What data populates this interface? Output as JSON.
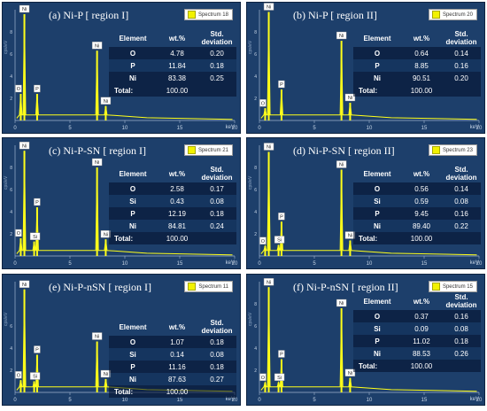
{
  "panels": [
    {
      "title": "(a) Ni-P [ region I]",
      "spectrum": "Spectrum 18",
      "ylabel": "cps/eV",
      "xlabel": "keV",
      "xticks": [
        0,
        5,
        10,
        15,
        20
      ],
      "yticks": [
        2,
        4,
        6,
        8
      ],
      "peaks": [
        {
          "label": "Ni",
          "x": 0.85,
          "h": 9.6
        },
        {
          "label": "O",
          "x": 0.52,
          "h": 2.4
        },
        {
          "label": "P",
          "x": 2.01,
          "h": 2.4
        },
        {
          "label": "Ni",
          "x": 7.47,
          "h": 6.3
        },
        {
          "label": "Ni",
          "x": 8.26,
          "h": 1.3
        }
      ],
      "table": {
        "headers": [
          "Element",
          "wt.%",
          "Std. deviation"
        ],
        "rows": [
          [
            "O",
            "4.78",
            "0.20"
          ],
          [
            "P",
            "11.84",
            "0.18"
          ],
          [
            "Ni",
            "83.38",
            "0.25"
          ]
        ],
        "total_label": "Total:",
        "total": "100.00"
      }
    },
    {
      "title": "(b) Ni-P [ region II]",
      "spectrum": "Spectrum 20",
      "ylabel": "cps/eV",
      "xlabel": "keV",
      "xticks": [
        0,
        5,
        10,
        15,
        20
      ],
      "yticks": [
        2,
        4,
        6,
        8
      ],
      "peaks": [
        {
          "label": "Ni",
          "x": 0.85,
          "h": 9.8
        },
        {
          "label": "O",
          "x": 0.52,
          "h": 1.1
        },
        {
          "label": "P",
          "x": 2.01,
          "h": 2.8
        },
        {
          "label": "Ni",
          "x": 7.47,
          "h": 7.2
        },
        {
          "label": "Ni",
          "x": 8.26,
          "h": 1.6
        }
      ],
      "table": {
        "headers": [
          "Element",
          "wt.%",
          "Std. deviation"
        ],
        "rows": [
          [
            "O",
            "0.64",
            "0.14"
          ],
          [
            "P",
            "8.85",
            "0.16"
          ],
          [
            "Ni",
            "90.51",
            "0.20"
          ]
        ],
        "total_label": "Total:",
        "total": "100.00"
      }
    },
    {
      "title": "(c) Ni-P-SN [ region I]",
      "spectrum": "Spectrum 21",
      "ylabel": "cps/eV",
      "xlabel": "keV",
      "xticks": [
        0,
        5,
        10,
        15,
        20
      ],
      "yticks": [
        2,
        4,
        6,
        8
      ],
      "peaks": [
        {
          "label": "Ni",
          "x": 0.85,
          "h": 9.5
        },
        {
          "label": "O",
          "x": 0.52,
          "h": 1.6
        },
        {
          "label": "Si",
          "x": 1.74,
          "h": 1.3
        },
        {
          "label": "P",
          "x": 2.01,
          "h": 4.4
        },
        {
          "label": "Ni",
          "x": 7.47,
          "h": 8.0
        },
        {
          "label": "Ni",
          "x": 8.26,
          "h": 1.5
        }
      ],
      "table": {
        "headers": [
          "Element",
          "wt.%",
          "Std. deviation"
        ],
        "rows": [
          [
            "O",
            "2.58",
            "0.17"
          ],
          [
            "Si",
            "0.43",
            "0.08"
          ],
          [
            "P",
            "12.19",
            "0.18"
          ],
          [
            "Ni",
            "84.81",
            "0.24"
          ]
        ],
        "total_label": "Total:",
        "total": "100.00"
      }
    },
    {
      "title": "(d) Ni-P-SN [ region II]",
      "spectrum": "Spectrum 23",
      "ylabel": "cps/eV",
      "xlabel": "keV",
      "xticks": [
        0,
        5,
        10,
        15,
        20
      ],
      "yticks": [
        2,
        4,
        6,
        8
      ],
      "peaks": [
        {
          "label": "Ni",
          "x": 0.85,
          "h": 9.4
        },
        {
          "label": "O",
          "x": 0.52,
          "h": 0.9
        },
        {
          "label": "Si",
          "x": 1.74,
          "h": 1.0
        },
        {
          "label": "P",
          "x": 2.01,
          "h": 3.1
        },
        {
          "label": "Ni",
          "x": 7.47,
          "h": 7.8
        },
        {
          "label": "Ni",
          "x": 8.26,
          "h": 1.4
        }
      ],
      "table": {
        "headers": [
          "Element",
          "wt.%",
          "Std. deviation"
        ],
        "rows": [
          [
            "O",
            "0.56",
            "0.14"
          ],
          [
            "Si",
            "0.59",
            "0.08"
          ],
          [
            "P",
            "9.45",
            "0.16"
          ],
          [
            "Ni",
            "89.40",
            "0.22"
          ]
        ],
        "total_label": "Total:",
        "total": "100.00"
      }
    },
    {
      "title": "(e) Ni-P-nSN [ region I]",
      "spectrum": "Spectrum 11",
      "ylabel": "cps/eV",
      "xlabel": "keV",
      "xticks": [
        0,
        5,
        10,
        15,
        20
      ],
      "yticks": [
        2,
        4,
        6
      ],
      "peaks": [
        {
          "label": "Ni",
          "x": 0.85,
          "h": 9.3
        },
        {
          "label": "O",
          "x": 0.52,
          "h": 1.1
        },
        {
          "label": "Si",
          "x": 1.74,
          "h": 1.0
        },
        {
          "label": "P",
          "x": 2.01,
          "h": 3.4
        },
        {
          "label": "Ni",
          "x": 7.47,
          "h": 4.6
        },
        {
          "label": "Ni",
          "x": 8.26,
          "h": 1.2
        }
      ],
      "table": {
        "headers": [
          "Element",
          "wt.%",
          "Std. deviation"
        ],
        "rows": [
          [
            "O",
            "1.07",
            "0.18"
          ],
          [
            "Si",
            "0.14",
            "0.08"
          ],
          [
            "P",
            "11.16",
            "0.18"
          ],
          [
            "Ni",
            "87.63",
            "0.27"
          ]
        ],
        "total_label": "Total:",
        "total": "100.00"
      }
    },
    {
      "title": "(f) Ni-P-nSN [ region II]",
      "spectrum": "Spectrum 15",
      "ylabel": "cps/eV",
      "xlabel": "keV",
      "xticks": [
        0,
        5,
        10,
        15,
        20
      ],
      "yticks": [
        2,
        4,
        6,
        8
      ],
      "peaks": [
        {
          "label": "Ni",
          "x": 0.85,
          "h": 9.5
        },
        {
          "label": "O",
          "x": 0.52,
          "h": 0.9
        },
        {
          "label": "Si",
          "x": 1.74,
          "h": 0.9
        },
        {
          "label": "P",
          "x": 2.01,
          "h": 3.0
        },
        {
          "label": "Ni",
          "x": 7.47,
          "h": 7.6
        },
        {
          "label": "Ni",
          "x": 8.26,
          "h": 1.3
        }
      ],
      "table": {
        "headers": [
          "Element",
          "wt.%",
          "Std. deviation"
        ],
        "rows": [
          [
            "O",
            "0.37",
            "0.16"
          ],
          [
            "Si",
            "0.09",
            "0.08"
          ],
          [
            "P",
            "11.02",
            "0.18"
          ],
          [
            "Ni",
            "88.53",
            "0.26"
          ]
        ],
        "total_label": "Total:",
        "total": "100.00"
      }
    }
  ],
  "chart_data": [
    {
      "type": "bar",
      "title": "(a) Ni-P [ region I]",
      "xlabel": "keV",
      "ylabel": "cps/eV",
      "xlim": [
        0,
        20
      ],
      "ylim": [
        0,
        10
      ],
      "series": [
        {
          "name": "Spectrum 18",
          "x": [
            0.52,
            0.85,
            2.01,
            7.47,
            8.26
          ],
          "values": [
            2.4,
            9.6,
            2.4,
            6.3,
            1.3
          ]
        }
      ],
      "table": {
        "O": [
          4.78,
          0.2
        ],
        "P": [
          11.84,
          0.18
        ],
        "Ni": [
          83.38,
          0.25
        ],
        "Total": 100.0
      }
    },
    {
      "type": "bar",
      "title": "(b) Ni-P [ region II]",
      "xlabel": "keV",
      "ylabel": "cps/eV",
      "xlim": [
        0,
        20
      ],
      "ylim": [
        0,
        10
      ],
      "series": [
        {
          "name": "Spectrum 20",
          "x": [
            0.52,
            0.85,
            2.01,
            7.47,
            8.26
          ],
          "values": [
            1.1,
            9.8,
            2.8,
            7.2,
            1.6
          ]
        }
      ],
      "table": {
        "O": [
          0.64,
          0.14
        ],
        "P": [
          8.85,
          0.16
        ],
        "Ni": [
          90.51,
          0.2
        ],
        "Total": 100.0
      }
    },
    {
      "type": "bar",
      "title": "(c) Ni-P-SN [ region I]",
      "xlabel": "keV",
      "ylabel": "cps/eV",
      "xlim": [
        0,
        20
      ],
      "ylim": [
        0,
        10
      ],
      "series": [
        {
          "name": "Spectrum 21",
          "x": [
            0.52,
            0.85,
            1.74,
            2.01,
            7.47,
            8.26
          ],
          "values": [
            1.6,
            9.5,
            1.3,
            4.4,
            8.0,
            1.5
          ]
        }
      ],
      "table": {
        "O": [
          2.58,
          0.17
        ],
        "Si": [
          0.43,
          0.08
        ],
        "P": [
          12.19,
          0.18
        ],
        "Ni": [
          84.81,
          0.24
        ],
        "Total": 100.0
      }
    },
    {
      "type": "bar",
      "title": "(d) Ni-P-SN [ region II]",
      "xlabel": "keV",
      "ylabel": "cps/eV",
      "xlim": [
        0,
        20
      ],
      "ylim": [
        0,
        10
      ],
      "series": [
        {
          "name": "Spectrum 23",
          "x": [
            0.52,
            0.85,
            1.74,
            2.01,
            7.47,
            8.26
          ],
          "values": [
            0.9,
            9.4,
            1.0,
            3.1,
            7.8,
            1.4
          ]
        }
      ],
      "table": {
        "O": [
          0.56,
          0.14
        ],
        "Si": [
          0.59,
          0.08
        ],
        "P": [
          9.45,
          0.16
        ],
        "Ni": [
          89.4,
          0.22
        ],
        "Total": 100.0
      }
    },
    {
      "type": "bar",
      "title": "(e) Ni-P-nSN [ region I]",
      "xlabel": "keV",
      "ylabel": "cps/eV",
      "xlim": [
        0,
        20
      ],
      "ylim": [
        0,
        10
      ],
      "series": [
        {
          "name": "Spectrum 11",
          "x": [
            0.52,
            0.85,
            1.74,
            2.01,
            7.47,
            8.26
          ],
          "values": [
            1.1,
            9.3,
            1.0,
            3.4,
            4.6,
            1.2
          ]
        }
      ],
      "table": {
        "O": [
          1.07,
          0.18
        ],
        "Si": [
          0.14,
          0.08
        ],
        "P": [
          11.16,
          0.18
        ],
        "Ni": [
          87.63,
          0.27
        ],
        "Total": 100.0
      }
    },
    {
      "type": "bar",
      "title": "(f) Ni-P-nSN [ region II]",
      "xlabel": "keV",
      "ylabel": "cps/eV",
      "xlim": [
        0,
        20
      ],
      "ylim": [
        0,
        10
      ],
      "series": [
        {
          "name": "Spectrum 15",
          "x": [
            0.52,
            0.85,
            1.74,
            2.01,
            7.47,
            8.26
          ],
          "values": [
            0.9,
            9.5,
            0.9,
            3.0,
            7.6,
            1.3
          ]
        }
      ],
      "table": {
        "O": [
          0.37,
          0.16
        ],
        "Si": [
          0.09,
          0.08
        ],
        "P": [
          11.02,
          0.18
        ],
        "Ni": [
          88.53,
          0.26
        ],
        "Total": 100.0
      }
    }
  ],
  "colors": {
    "background": "#1d3f6b",
    "spectrum": "#ffff1a",
    "text": "#ffffff"
  }
}
